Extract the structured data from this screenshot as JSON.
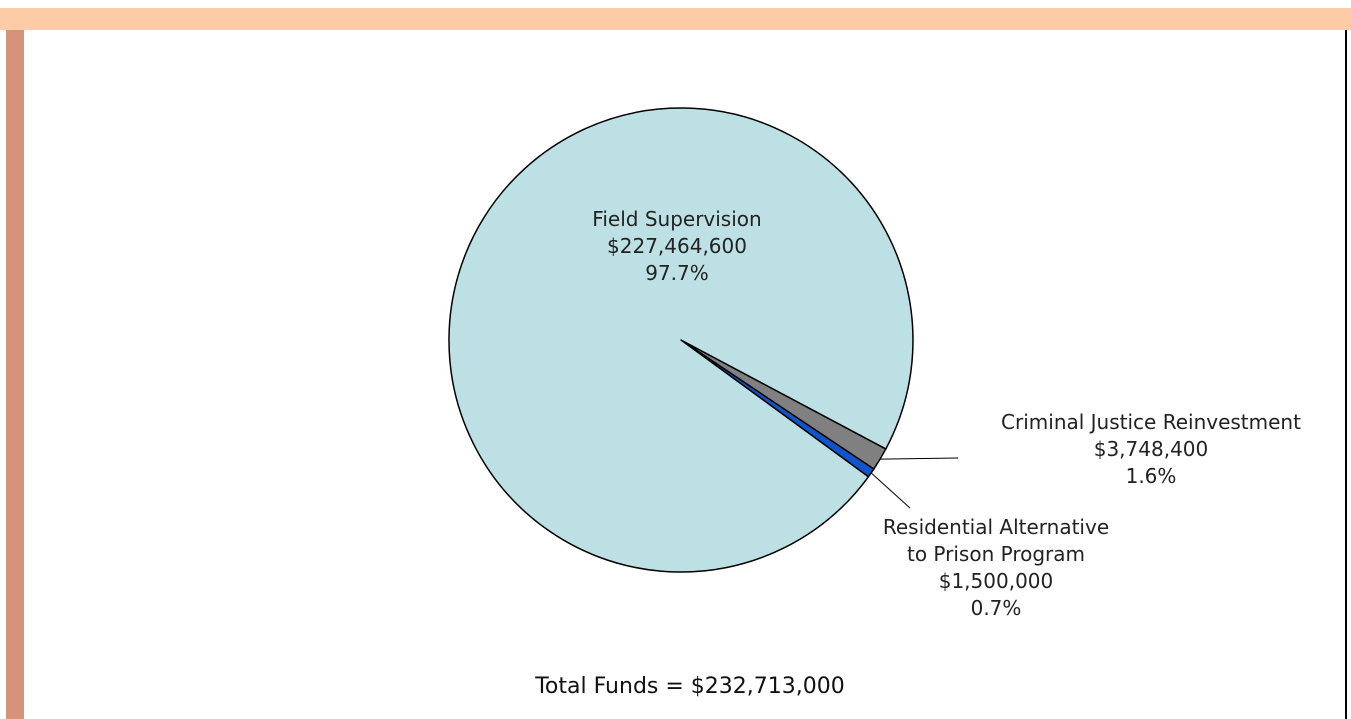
{
  "chart_data": {
    "type": "pie",
    "slices": [
      {
        "label": "Field Supervision",
        "amount": "$227,464,600",
        "percent": "97.7%",
        "value": 227464600,
        "color": "#bde0e4"
      },
      {
        "label": "Criminal Justice Reinvestment",
        "amount": "$3,748,400",
        "percent": "1.6%",
        "value": 3748400,
        "color": "#808080"
      },
      {
        "label_lines": [
          "Residential Alternative",
          "to Prison Program"
        ],
        "amount": "$1,500,000",
        "percent": "0.7%",
        "value": 1500000,
        "color": "#1155cc"
      }
    ],
    "total_text": "Total Funds = $232,713,000"
  },
  "colors": {
    "top_band": "#fdcba6",
    "left_bar": "#d4937a",
    "outline": "#000000"
  }
}
